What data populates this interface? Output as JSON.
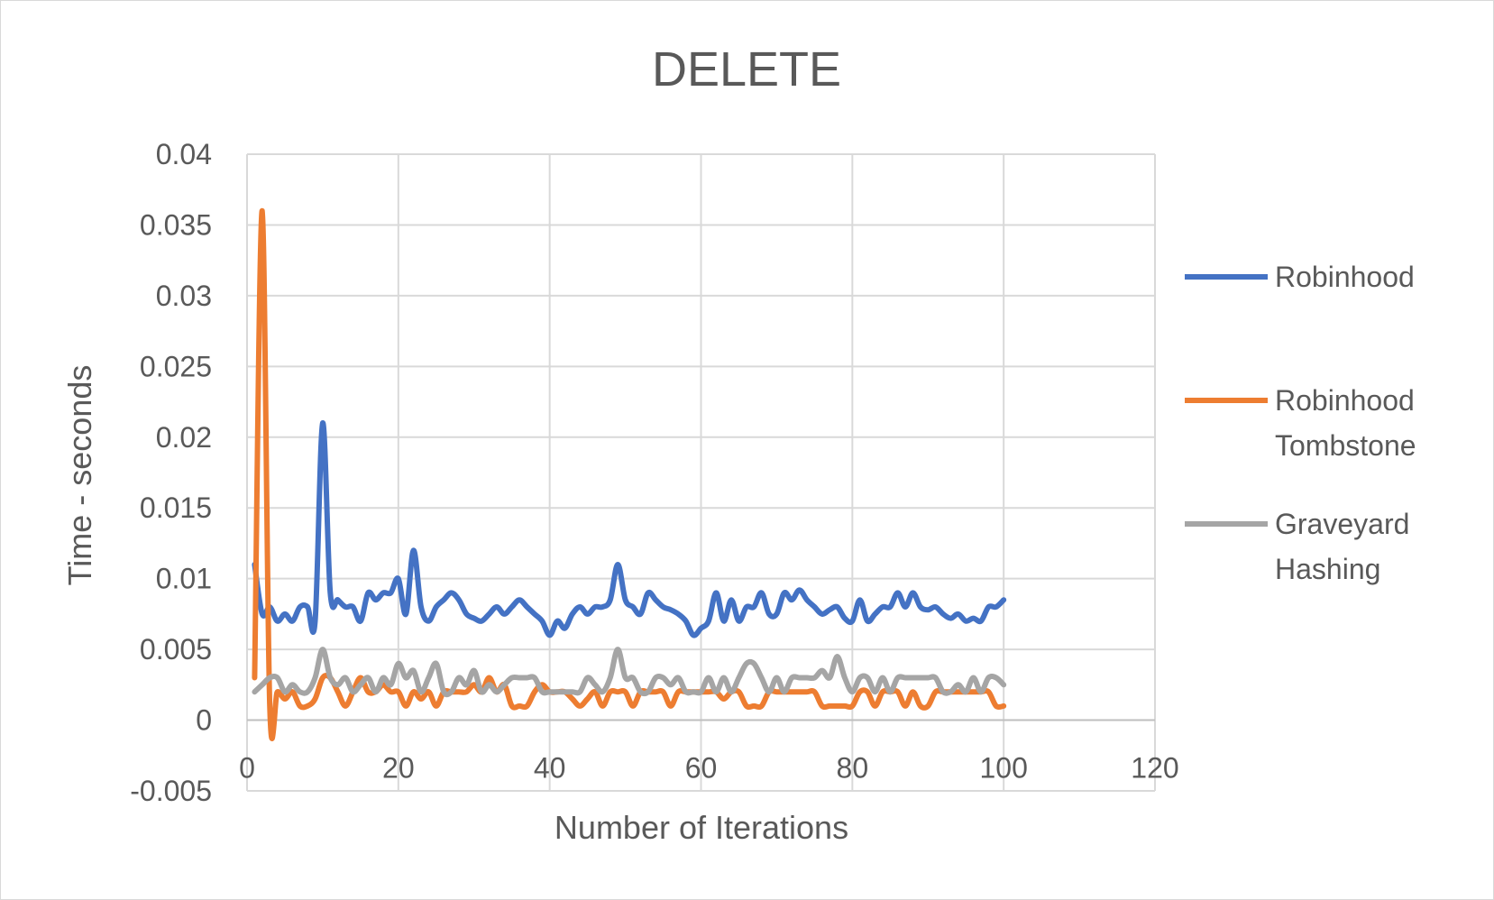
{
  "chart_data": {
    "type": "line",
    "title": "DELETE",
    "xlabel": "Number of Iterations",
    "ylabel": "Time - seconds",
    "xlim": [
      0,
      120
    ],
    "ylim": [
      -0.005,
      0.04
    ],
    "x_ticks": [
      0,
      20,
      40,
      60,
      80,
      100,
      120
    ],
    "y_ticks": [
      -0.005,
      0,
      0.005,
      0.01,
      0.015,
      0.02,
      0.025,
      0.03,
      0.035,
      0.04
    ],
    "x_tick_labels": [
      "0",
      "20",
      "40",
      "60",
      "80",
      "100",
      "120"
    ],
    "y_tick_labels": [
      "-0.005",
      "0",
      "0.005",
      "0.01",
      "0.015",
      "0.02",
      "0.025",
      "0.03",
      "0.035",
      "0.04"
    ],
    "grid": true,
    "legend_position": "right",
    "x": [
      1,
      2,
      3,
      4,
      5,
      6,
      7,
      8,
      9,
      10,
      11,
      12,
      13,
      14,
      15,
      16,
      17,
      18,
      19,
      20,
      21,
      22,
      23,
      24,
      25,
      26,
      27,
      28,
      29,
      30,
      31,
      32,
      33,
      34,
      35,
      36,
      37,
      38,
      39,
      40,
      41,
      42,
      43,
      44,
      45,
      46,
      47,
      48,
      49,
      50,
      51,
      52,
      53,
      54,
      55,
      56,
      57,
      58,
      59,
      60,
      61,
      62,
      63,
      64,
      65,
      66,
      67,
      68,
      69,
      70,
      71,
      72,
      73,
      74,
      75,
      76,
      77,
      78,
      79,
      80,
      81,
      82,
      83,
      84,
      85,
      86,
      87,
      88,
      89,
      90,
      91,
      92,
      93,
      94,
      95,
      96,
      97,
      98,
      99,
      100
    ],
    "series": [
      {
        "name": "Robinhood",
        "color": "#4472c4",
        "values": [
          0.011,
          0.0075,
          0.008,
          0.007,
          0.0075,
          0.007,
          0.008,
          0.008,
          0.007,
          0.021,
          0.009,
          0.0085,
          0.008,
          0.008,
          0.007,
          0.009,
          0.0085,
          0.009,
          0.009,
          0.01,
          0.0075,
          0.012,
          0.008,
          0.007,
          0.008,
          0.0085,
          0.009,
          0.0085,
          0.0075,
          0.0072,
          0.007,
          0.0075,
          0.008,
          0.0075,
          0.008,
          0.0085,
          0.008,
          0.0075,
          0.007,
          0.006,
          0.007,
          0.0065,
          0.0075,
          0.008,
          0.0075,
          0.008,
          0.008,
          0.0085,
          0.011,
          0.0085,
          0.008,
          0.0075,
          0.009,
          0.0085,
          0.008,
          0.0078,
          0.0075,
          0.007,
          0.006,
          0.0065,
          0.007,
          0.009,
          0.007,
          0.0085,
          0.007,
          0.008,
          0.008,
          0.009,
          0.0075,
          0.0075,
          0.009,
          0.0085,
          0.0092,
          0.0085,
          0.008,
          0.0075,
          0.0078,
          0.008,
          0.0072,
          0.007,
          0.0085,
          0.007,
          0.0075,
          0.008,
          0.008,
          0.009,
          0.008,
          0.009,
          0.008,
          0.0078,
          0.008,
          0.0075,
          0.0072,
          0.0075,
          0.007,
          0.0072,
          0.007,
          0.008,
          0.008,
          0.0085
        ]
      },
      {
        "name": "Robinhood Tombstone",
        "color": "#ed7d31",
        "values": [
          0.003,
          0.036,
          0.001,
          0.002,
          0.0015,
          0.002,
          0.001,
          0.001,
          0.0015,
          0.003,
          0.003,
          0.002,
          0.001,
          0.002,
          0.003,
          0.002,
          0.002,
          0.0025,
          0.002,
          0.002,
          0.001,
          0.002,
          0.0015,
          0.002,
          0.001,
          0.002,
          0.002,
          0.002,
          0.002,
          0.0025,
          0.002,
          0.003,
          0.002,
          0.0025,
          0.001,
          0.001,
          0.001,
          0.002,
          0.0025,
          0.002,
          0.002,
          0.002,
          0.0015,
          0.001,
          0.0015,
          0.002,
          0.001,
          0.002,
          0.002,
          0.002,
          0.001,
          0.002,
          0.002,
          0.002,
          0.002,
          0.001,
          0.002,
          0.002,
          0.002,
          0.002,
          0.002,
          0.002,
          0.0015,
          0.002,
          0.002,
          0.001,
          0.001,
          0.001,
          0.002,
          0.002,
          0.002,
          0.002,
          0.002,
          0.002,
          0.002,
          0.001,
          0.001,
          0.001,
          0.001,
          0.001,
          0.002,
          0.002,
          0.001,
          0.002,
          0.002,
          0.002,
          0.001,
          0.002,
          0.001,
          0.001,
          0.002,
          0.002,
          0.002,
          0.002,
          0.002,
          0.002,
          0.002,
          0.002,
          0.001,
          0.001
        ]
      },
      {
        "name": "Graveyard Hashing",
        "color": "#a5a5a5",
        "values": [
          0.002,
          0.0025,
          0.003,
          0.003,
          0.002,
          0.0025,
          0.002,
          0.002,
          0.003,
          0.005,
          0.003,
          0.0025,
          0.003,
          0.002,
          0.0025,
          0.003,
          0.002,
          0.003,
          0.0025,
          0.004,
          0.003,
          0.0035,
          0.002,
          0.003,
          0.004,
          0.002,
          0.002,
          0.003,
          0.0025,
          0.0035,
          0.002,
          0.0025,
          0.002,
          0.0025,
          0.003,
          0.003,
          0.003,
          0.003,
          0.002,
          0.002,
          0.002,
          0.002,
          0.002,
          0.002,
          0.003,
          0.0025,
          0.002,
          0.003,
          0.005,
          0.003,
          0.003,
          0.002,
          0.002,
          0.003,
          0.003,
          0.0025,
          0.003,
          0.002,
          0.002,
          0.002,
          0.003,
          0.002,
          0.003,
          0.002,
          0.003,
          0.004,
          0.004,
          0.003,
          0.002,
          0.003,
          0.002,
          0.003,
          0.003,
          0.003,
          0.003,
          0.0035,
          0.003,
          0.0045,
          0.003,
          0.002,
          0.003,
          0.003,
          0.002,
          0.003,
          0.002,
          0.003,
          0.003,
          0.003,
          0.003,
          0.003,
          0.003,
          0.002,
          0.002,
          0.0025,
          0.002,
          0.003,
          0.002,
          0.003,
          0.003,
          0.0025
        ]
      }
    ]
  }
}
